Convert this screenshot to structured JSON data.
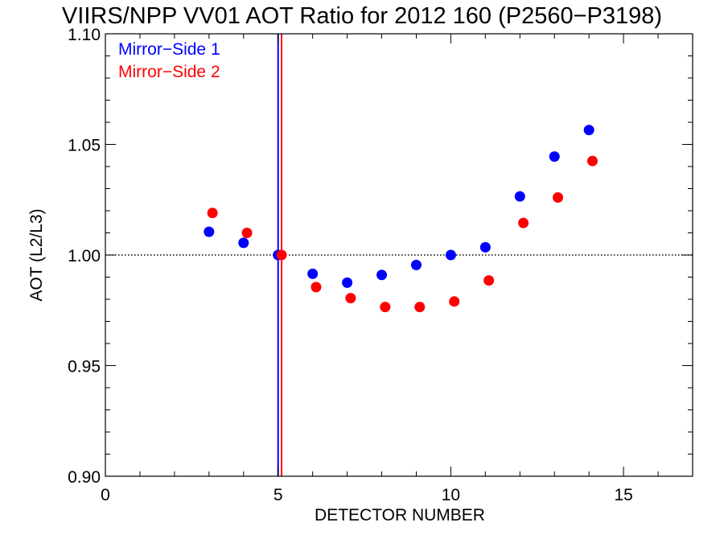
{
  "chart_data": {
    "type": "scatter",
    "title": "VIIRS/NPP VV01 AOT Ratio for 2012 160 (P2560−P3198)",
    "xlabel": "DETECTOR NUMBER",
    "ylabel": "AOT (L2/L3)",
    "xlim": [
      0,
      17
    ],
    "ylim": [
      0.9,
      1.1
    ],
    "xticks": [
      0,
      5,
      10,
      15
    ],
    "xtick_labels": [
      "0",
      "5",
      "10",
      "15"
    ],
    "yticks": [
      0.9,
      0.95,
      1.0,
      1.05,
      1.1
    ],
    "ytick_labels": [
      "0.90",
      "0.95",
      "1.00",
      "1.05",
      "1.10"
    ],
    "reference_line_y": 1.0,
    "legend_position": "top-left",
    "series": [
      {
        "name": "Mirror−Side 1",
        "color": "#0000ff",
        "vline_x": 5.0,
        "points": [
          [
            3,
            1.0105
          ],
          [
            4,
            1.0055
          ],
          [
            5,
            1.0
          ],
          [
            6,
            0.9915
          ],
          [
            7,
            0.9875
          ],
          [
            8,
            0.991
          ],
          [
            9,
            0.9955
          ],
          [
            10,
            1.0
          ],
          [
            11,
            1.0035
          ],
          [
            12,
            1.0265
          ],
          [
            13,
            1.0445
          ],
          [
            14,
            1.0565
          ]
        ]
      },
      {
        "name": "Mirror−Side 2",
        "color": "#ff0000",
        "vline_x": 5.1,
        "points": [
          [
            3.1,
            1.019
          ],
          [
            4.1,
            1.01
          ],
          [
            5.1,
            1.0
          ],
          [
            6.1,
            0.9855
          ],
          [
            7.1,
            0.9805
          ],
          [
            8.1,
            0.9765
          ],
          [
            9.1,
            0.9765
          ],
          [
            10.1,
            0.979
          ],
          [
            11.1,
            0.9885
          ],
          [
            12.1,
            1.0145
          ],
          [
            13.1,
            1.026
          ],
          [
            14.1,
            1.0425
          ]
        ]
      }
    ]
  }
}
